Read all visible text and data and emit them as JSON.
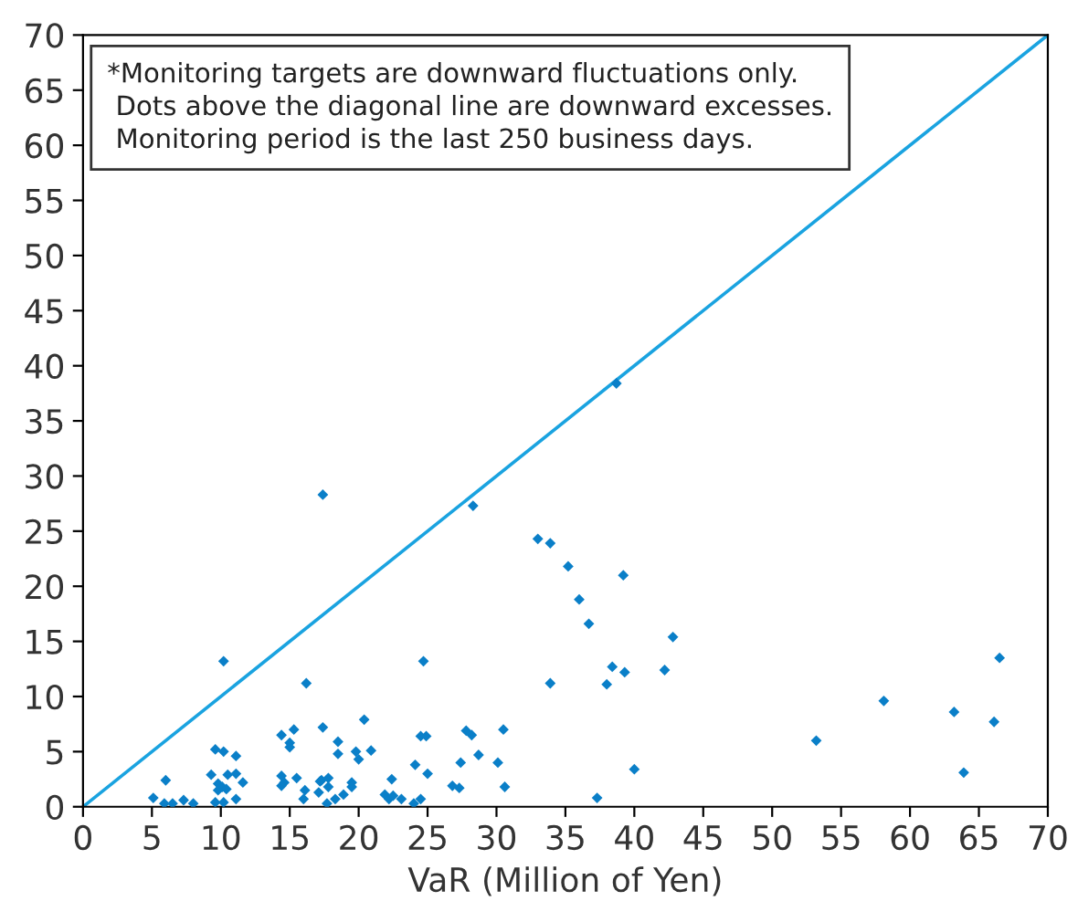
{
  "chart_data": {
    "type": "scatter",
    "xlabel": "VaR (Million of Yen)",
    "annotations": [
      "*Monitoring targets are downward fluctuations only.\n Dots above the diagonal line are downward excesses.\n Monitoring period is the last 250 business days."
    ],
    "xlim": [
      0,
      70
    ],
    "ylim": [
      0,
      70
    ],
    "xticks": [
      0,
      5,
      10,
      15,
      20,
      25,
      30,
      35,
      40,
      45,
      50,
      55,
      60,
      65,
      70
    ],
    "yticks": [
      0,
      5,
      10,
      15,
      20,
      25,
      30,
      35,
      40,
      45,
      50,
      55,
      60,
      65,
      70
    ],
    "grid": false,
    "legend": false,
    "marker": "diamond",
    "series": [
      {
        "color": "#0a7fc8",
        "x": [
          5.1,
          6.0,
          5.9,
          6.5,
          7.3,
          8.0,
          10.2,
          9.6,
          10.2,
          11.1,
          9.3,
          10.5,
          11.1,
          11.6,
          9.8,
          10.1,
          10.4,
          9.8,
          11.1,
          9.6,
          10.2,
          16.2,
          14.4,
          15.3,
          15.0,
          15.0,
          14.4,
          14.6,
          14.4,
          15.5,
          17.3,
          17.4,
          24.7,
          20.4,
          18.5,
          18.5,
          19.8,
          20.0,
          20.9,
          16.1,
          16.0,
          17.2,
          17.8,
          17.8,
          17.1,
          17.7,
          18.3,
          18.9,
          19.5,
          19.5,
          21.9,
          22.4,
          22.2,
          22.5,
          23.1,
          24.0,
          24.5,
          24.1,
          25.0,
          24.5,
          24.9,
          26.8,
          27.3,
          27.4,
          27.8,
          28.2,
          28.7,
          30.1,
          30.5,
          30.6,
          17.4,
          38.7,
          28.3,
          33.0,
          33.9,
          35.2,
          39.2,
          36.0,
          36.7,
          42.8,
          38.4,
          39.3,
          42.2,
          33.9,
          38.0,
          40.0,
          37.3,
          53.2,
          58.1,
          63.2,
          63.9,
          66.1,
          66.5
        ],
        "values": [
          0.8,
          2.4,
          0.3,
          0.3,
          0.6,
          0.3,
          13.2,
          5.2,
          5.0,
          4.6,
          2.9,
          2.9,
          3.0,
          2.2,
          2.1,
          1.8,
          1.6,
          1.5,
          0.7,
          0.4,
          0.4,
          11.2,
          6.5,
          7.0,
          5.8,
          5.4,
          2.8,
          2.2,
          1.9,
          2.6,
          2.4,
          7.2,
          13.2,
          7.9,
          5.9,
          4.8,
          5.0,
          4.3,
          5.1,
          1.5,
          0.7,
          2.3,
          2.6,
          1.8,
          1.3,
          0.3,
          0.7,
          1.1,
          2.2,
          1.8,
          1.1,
          2.5,
          0.7,
          1.0,
          0.7,
          0.3,
          0.7,
          3.8,
          3.0,
          6.4,
          6.4,
          1.9,
          1.7,
          4.0,
          6.9,
          6.5,
          4.7,
          4.0,
          7.0,
          1.8,
          28.3,
          38.4,
          27.3,
          24.3,
          23.9,
          21.8,
          21.0,
          18.8,
          16.6,
          15.4,
          12.7,
          12.2,
          12.4,
          11.2,
          11.1,
          3.4,
          0.8,
          6.0,
          9.6,
          8.6,
          3.1,
          7.7,
          13.5
        ]
      },
      {
        "type": "line",
        "color": "#1aa3e0",
        "x": [
          0,
          70
        ],
        "values": [
          0,
          70
        ],
        "marker": "none",
        "line_style": "solid"
      }
    ]
  }
}
